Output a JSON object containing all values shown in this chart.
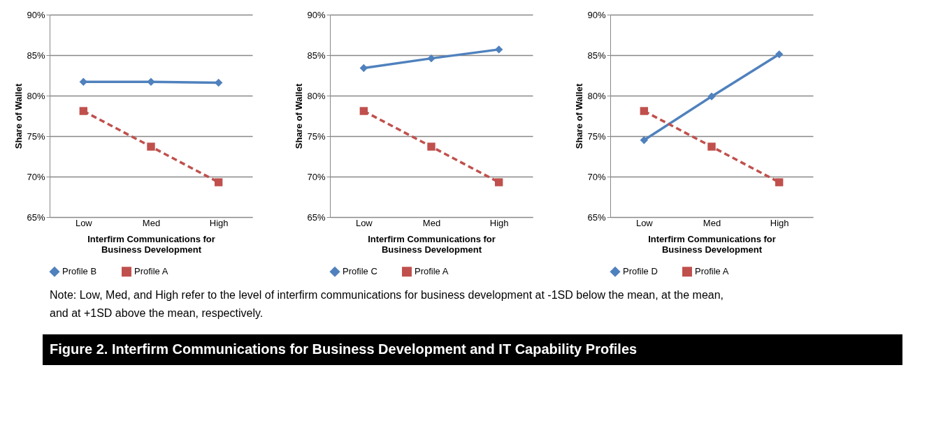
{
  "chart_data": [
    {
      "type": "line",
      "title": "Figure 2.  Interfirm Communications for Business Development and IT Capability Profiles",
      "annotations": [
        "Note:  Low, Med, and High refer to the level of interfirm communications for business development at -1SD below the mean, at the mean,\nand at +1SD above the mean, respectively."
      ],
      "categories": [
        "Low",
        "Med",
        "High"
      ],
      "xlabel": "Interfirm Communications for\nBusiness Development",
      "ylabel": "Share of Wallet",
      "ylim": [
        65,
        90
      ],
      "yticks": [
        {
          "value": 65,
          "label": "65%"
        },
        {
          "value": 70,
          "label": "70%"
        },
        {
          "value": 75,
          "label": "75%"
        },
        {
          "value": 80,
          "label": "80%"
        },
        {
          "value": 85,
          "label": "85%"
        },
        {
          "value": 90,
          "label": "90%"
        }
      ],
      "grid": "y",
      "legend": "bottom",
      "series": [
        {
          "name": "Profile B",
          "color": "#4f81bd",
          "marker": "diamond",
          "line_style": "solid",
          "values": [
            81.7,
            81.7,
            81.6
          ]
        },
        {
          "name": "Profile A",
          "color": "#c0504d",
          "marker": "square",
          "line_style": "dashed",
          "values": [
            78.1,
            73.7,
            69.3
          ]
        }
      ]
    },
    {
      "type": "line",
      "categories": [
        "Low",
        "Med",
        "High"
      ],
      "xlabel": "Interfirm Communications for\nBusiness Development",
      "ylabel": "Share of Wallet",
      "ylim": [
        65,
        90
      ],
      "yticks": [
        {
          "value": 65,
          "label": "65%"
        },
        {
          "value": 70,
          "label": "70%"
        },
        {
          "value": 75,
          "label": "75%"
        },
        {
          "value": 80,
          "label": "80%"
        },
        {
          "value": 85,
          "label": "85%"
        },
        {
          "value": 90,
          "label": "90%"
        }
      ],
      "grid": "y",
      "legend": "bottom",
      "series": [
        {
          "name": "Profile C",
          "color": "#4f81bd",
          "marker": "diamond",
          "line_style": "solid",
          "values": [
            83.4,
            84.6,
            85.7
          ]
        },
        {
          "name": "Profile A",
          "color": "#c0504d",
          "marker": "square",
          "line_style": "dashed",
          "values": [
            78.1,
            73.7,
            69.3
          ]
        }
      ]
    },
    {
      "type": "line",
      "categories": [
        "Low",
        "Med",
        "High"
      ],
      "xlabel": "Interfirm Communications for\nBusiness Development",
      "ylabel": "Share of Wallet",
      "ylim": [
        65,
        90
      ],
      "yticks": [
        {
          "value": 65,
          "label": "65%"
        },
        {
          "value": 70,
          "label": "70%"
        },
        {
          "value": 75,
          "label": "75%"
        },
        {
          "value": 80,
          "label": "80%"
        },
        {
          "value": 85,
          "label": "85%"
        },
        {
          "value": 90,
          "label": "90%"
        }
      ],
      "grid": "y",
      "legend": "bottom",
      "series": [
        {
          "name": "Profile D",
          "color": "#4f81bd",
          "marker": "diamond",
          "line_style": "solid",
          "values": [
            74.5,
            79.9,
            85.1
          ]
        },
        {
          "name": "Profile A",
          "color": "#c0504d",
          "marker": "square",
          "line_style": "dashed",
          "values": [
            78.1,
            73.7,
            69.3
          ]
        }
      ]
    }
  ]
}
